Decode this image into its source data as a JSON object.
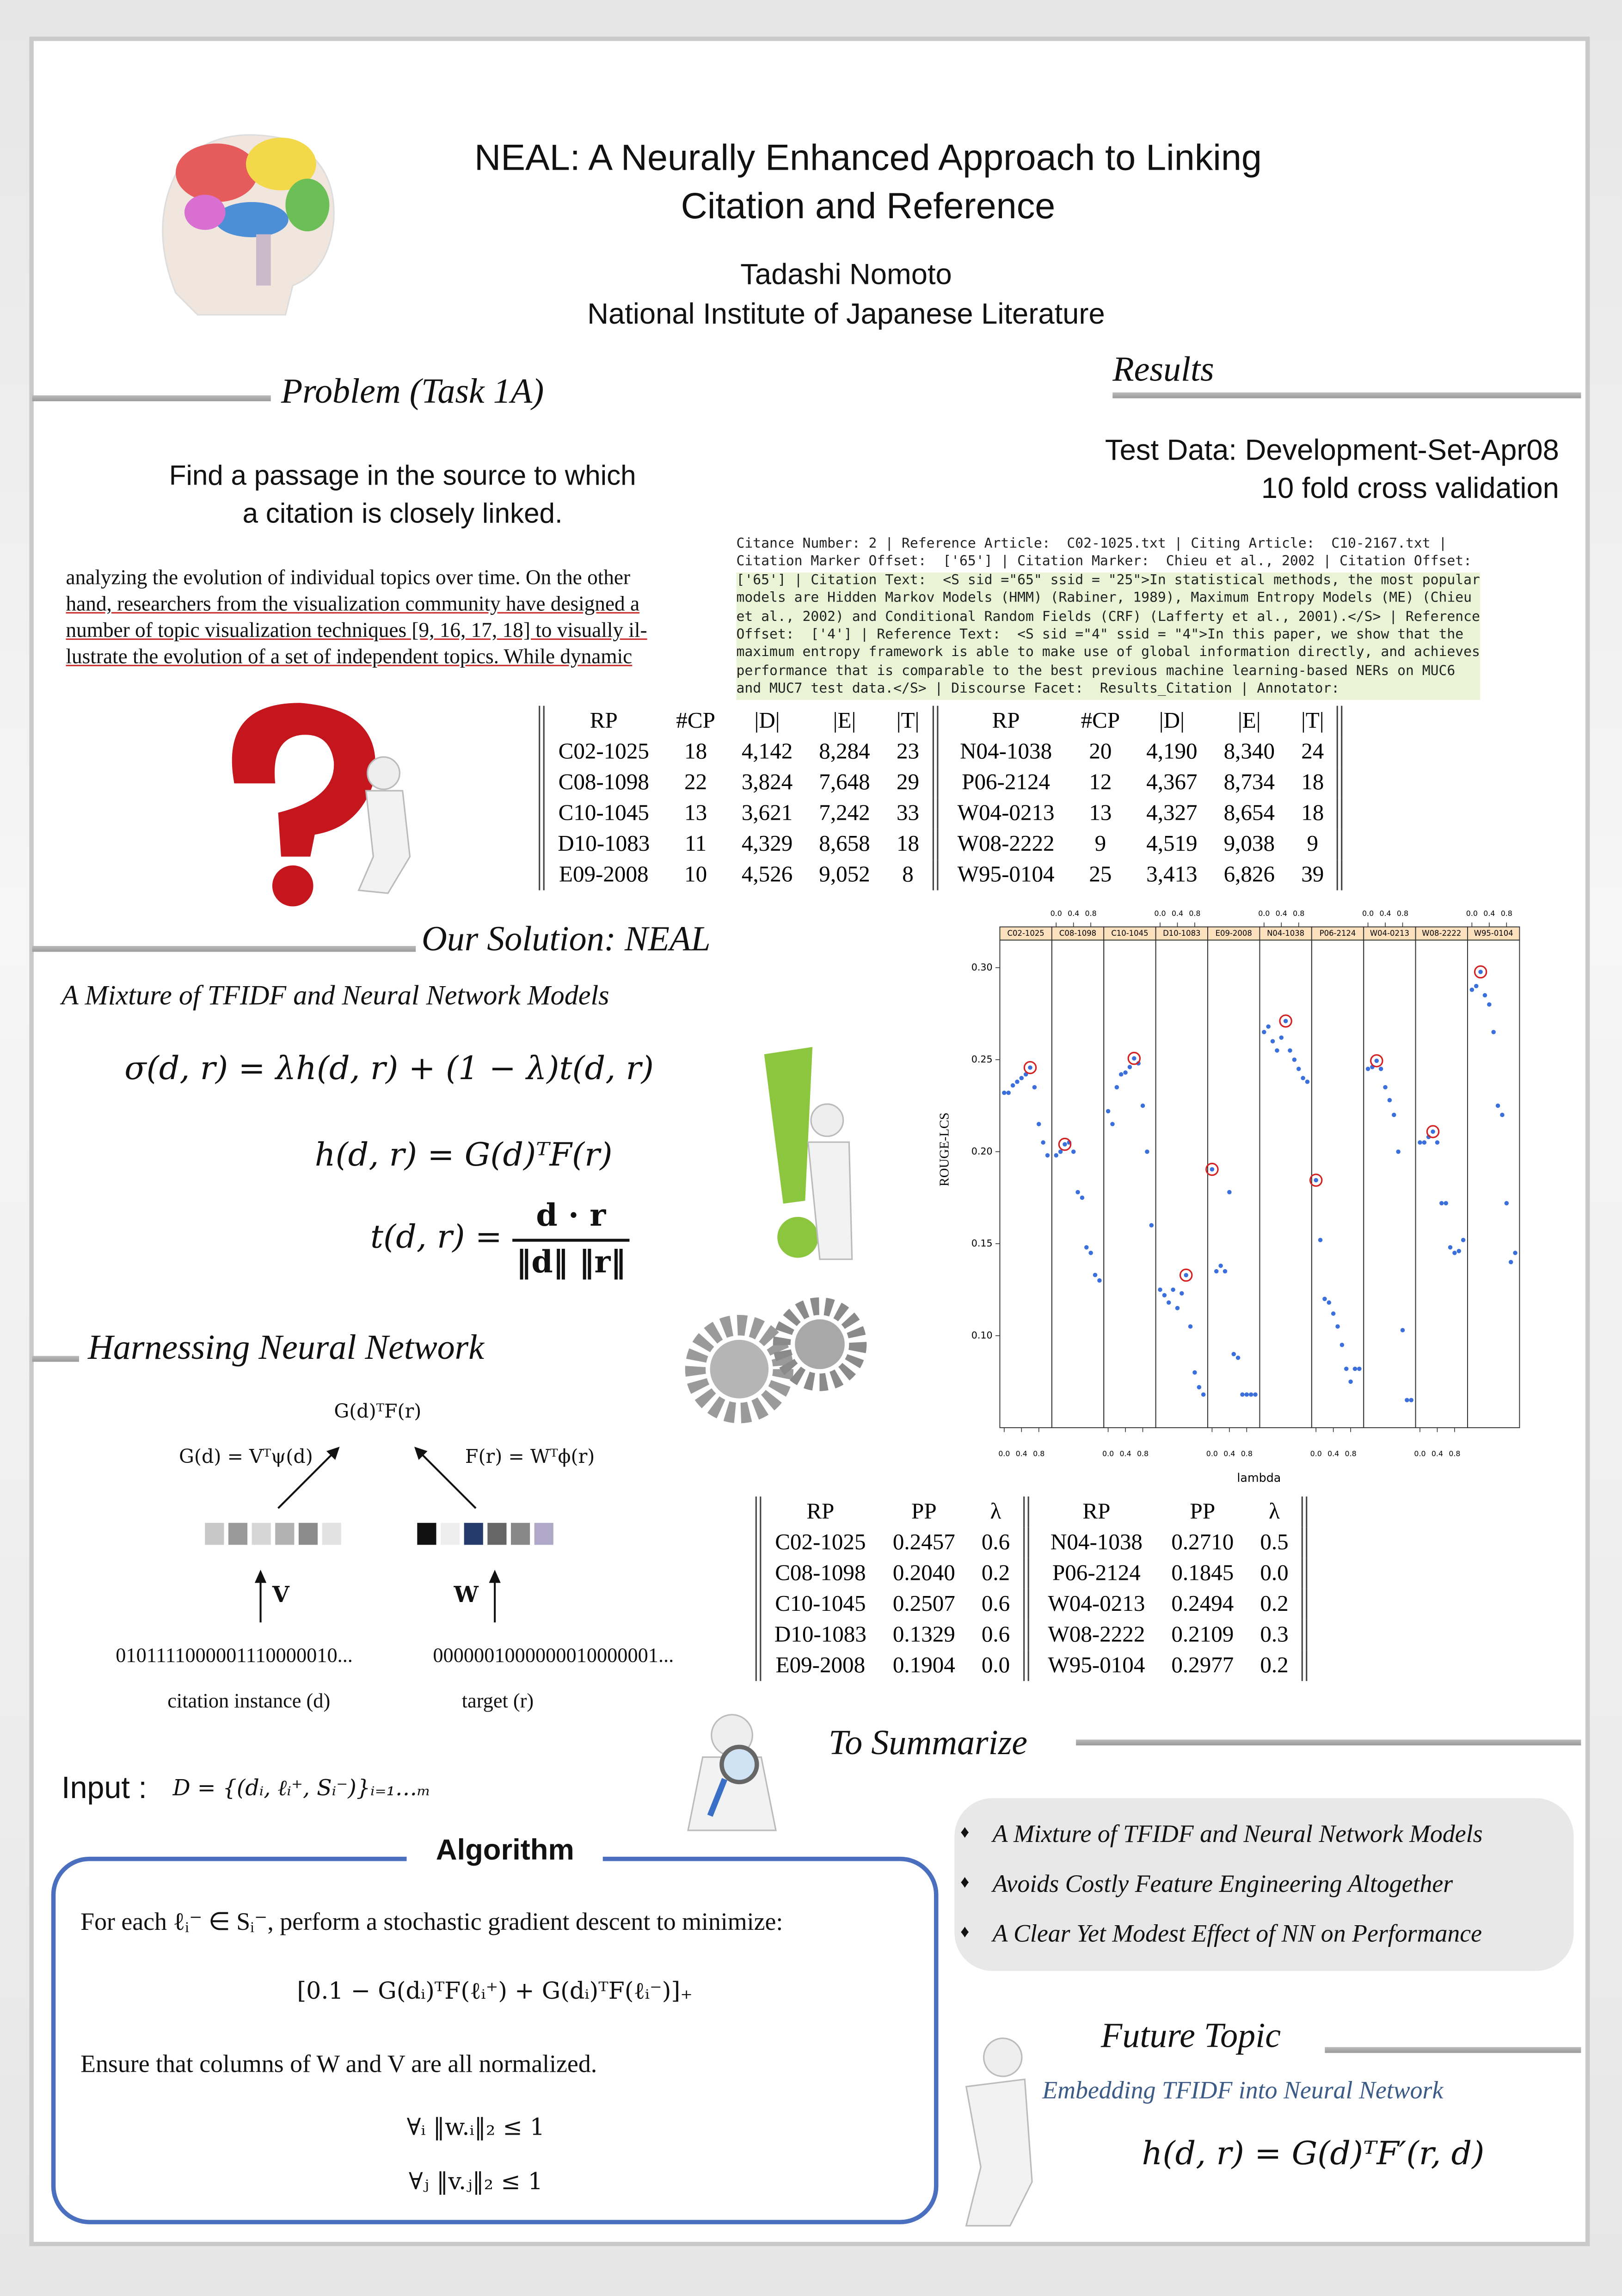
{
  "header": {
    "title": [
      "NEAL: A Neurally Enhanced Approach to Linking",
      "Citation and Reference"
    ],
    "author": "Tadashi Nomoto",
    "affiliation": "National Institute of Japanese Literature"
  },
  "problem": {
    "heading": "Problem (Task 1A)",
    "statement": [
      "Find a passage in the source to which",
      "a citation is closely linked."
    ],
    "excerpt": [
      "analyzing the evolution of individual topics over time.  On the other",
      "hand, researchers from the visualization community have designed a",
      "number of topic visualization techniques [9, 16, 17, 18] to visually il-",
      "lustrate the evolution of a set of independent topics.  While dynamic"
    ]
  },
  "results": {
    "heading": "Results",
    "test_data": [
      "Test Data: Development-Set-Apr08",
      "10 fold cross validation"
    ],
    "example": [
      "Citance Number: 2 | Reference Article:  C02-1025.txt | Citing Article:  C10-2167.txt |",
      "Citation Marker Offset:  ['65'] | Citation Marker:  Chieu et al., 2002 | Citation Offset:",
      "['65'] | Citation Text:  <S sid =\"65\" ssid = \"25\">In statistical methods, the most popular",
      "models are Hidden Markov Models (HMM) (Rabiner, 1989), Maximum Entropy Models (ME) (Chieu",
      "et al., 2002) and Conditional Random Fields (CRF) (Lafferty et al., 2001).</S> | Reference",
      "Offset:  ['4'] | Reference Text:  <S sid =\"4\" ssid = \"4\">In this paper, we show that the",
      "maximum entropy framework is able to make use of global information directly, and achieves",
      "performance that is comparable to the best previous machine learning-based NERs on MUC6",
      "and MUC7 test data.</S> | Discourse Facet:  Results_Citation | Annotator:"
    ],
    "data_table": {
      "columns": [
        "RP",
        "#CP",
        "|D|",
        "|E|",
        "|T|"
      ],
      "left": [
        [
          "C02-1025",
          "18",
          "4,142",
          "8,284",
          "23"
        ],
        [
          "C08-1098",
          "22",
          "3,824",
          "7,648",
          "29"
        ],
        [
          "C10-1045",
          "13",
          "3,621",
          "7,242",
          "33"
        ],
        [
          "D10-1083",
          "11",
          "4,329",
          "8,658",
          "18"
        ],
        [
          "E09-2008",
          "10",
          "4,526",
          "9,052",
          "8"
        ]
      ],
      "right": [
        [
          "N04-1038",
          "20",
          "4,190",
          "8,340",
          "24"
        ],
        [
          "P06-2124",
          "12",
          "4,367",
          "8,734",
          "18"
        ],
        [
          "W04-0213",
          "13",
          "4,327",
          "8,654",
          "18"
        ],
        [
          "W08-2222",
          "9",
          "4,519",
          "9,038",
          "9"
        ],
        [
          "W95-0104",
          "25",
          "3,413",
          "6,826",
          "39"
        ]
      ]
    },
    "score_table": {
      "columns": [
        "RP",
        "PP",
        "λ"
      ],
      "left": [
        [
          "C02-1025",
          "0.2457",
          "0.6"
        ],
        [
          "C08-1098",
          "0.2040",
          "0.2"
        ],
        [
          "C10-1045",
          "0.2507",
          "0.6"
        ],
        [
          "D10-1083",
          "0.1329",
          "0.6"
        ],
        [
          "E09-2008",
          "0.1904",
          "0.0"
        ]
      ],
      "right": [
        [
          "N04-1038",
          "0.2710",
          "0.5"
        ],
        [
          "P06-2124",
          "0.1845",
          "0.0"
        ],
        [
          "W04-0213",
          "0.2494",
          "0.2"
        ],
        [
          "W08-2222",
          "0.2109",
          "0.3"
        ],
        [
          "W95-0104",
          "0.2977",
          "0.2"
        ]
      ]
    }
  },
  "chart_data": {
    "type": "scatter",
    "y_label": "ROUGE-LCS",
    "x_label": "lambda",
    "ylim": [
      0.05,
      0.315
    ],
    "yticks": [
      {
        "value": 0.1,
        "label": "0.10"
      },
      0.15,
      {
        "value": 0.2,
        "label": "0.20"
      },
      0.25,
      {
        "value": 0.3,
        "label": "0.30"
      }
    ],
    "xlim": [
      -0.1,
      1.1
    ],
    "xticks": [
      {
        "value": 0,
        "label": "0.0"
      },
      0.4,
      0.8
    ],
    "color": "#3b6fdc",
    "highlight_color": "#d42020",
    "strip_color": "#fde0bd",
    "x": [
      0,
      0.1,
      0.2,
      0.3,
      0.4,
      0.5,
      0.6,
      0.7,
      0.8,
      0.9,
      1.0
    ],
    "panels": [
      {
        "name": "C02-1025",
        "circled": 6,
        "values": [
          0.232,
          0.232,
          0.236,
          0.238,
          0.24,
          0.242,
          0.2457,
          0.235,
          0.215,
          0.205,
          0.198
        ]
      },
      {
        "name": "C08-1098",
        "circled": 2,
        "values": [
          0.198,
          0.2,
          0.204,
          0.205,
          0.2,
          0.178,
          0.175,
          0.148,
          0.145,
          0.133,
          0.13
        ]
      },
      {
        "name": "C10-1045",
        "circled": 6,
        "values": [
          0.222,
          0.215,
          0.235,
          0.242,
          0.243,
          0.246,
          0.2507,
          0.248,
          0.225,
          0.2,
          0.16
        ]
      },
      {
        "name": "D10-1083",
        "circled": 6,
        "values": [
          0.125,
          0.122,
          0.118,
          0.125,
          0.115,
          0.123,
          0.1329,
          0.105,
          0.08,
          0.072,
          0.068
        ]
      },
      {
        "name": "E09-2008",
        "circled": 0,
        "values": [
          0.1904,
          0.135,
          0.138,
          0.135,
          0.178,
          0.09,
          0.088,
          0.068,
          0.068,
          0.068,
          0.068
        ]
      },
      {
        "name": "N04-1038",
        "circled": 5,
        "values": [
          0.265,
          0.268,
          0.26,
          0.255,
          0.262,
          0.271,
          0.255,
          0.25,
          0.245,
          0.24,
          0.238
        ]
      },
      {
        "name": "P06-2124",
        "circled": 0,
        "values": [
          0.1845,
          0.152,
          0.12,
          0.118,
          0.112,
          0.105,
          0.095,
          0.082,
          0.075,
          0.082,
          0.082
        ]
      },
      {
        "name": "W04-0213",
        "circled": 2,
        "values": [
          0.245,
          0.246,
          0.2494,
          0.245,
          0.235,
          0.228,
          0.22,
          0.2,
          0.103,
          0.065,
          0.065
        ]
      },
      {
        "name": "W08-2222",
        "circled": 3,
        "values": [
          0.205,
          0.205,
          0.208,
          0.2109,
          0.205,
          0.172,
          0.172,
          0.148,
          0.145,
          0.146,
          0.152
        ]
      },
      {
        "name": "W95-0104",
        "circled": 2,
        "values": [
          0.288,
          0.29,
          0.2977,
          0.285,
          0.28,
          0.265,
          0.225,
          0.22,
          0.172,
          0.14,
          0.145
        ]
      }
    ]
  },
  "solution": {
    "heading": "Our Solution: NEAL",
    "subheading": "A Mixture of TFIDF and Neural Network Models",
    "sigma": "σ(d, r) = λh(d, r) + (1 − λ)t(d, r)",
    "h": "h(d, r) = G(d)ᵀF(r)",
    "t": {
      "lhs": "t(d, r) =",
      "numerator": "d · r",
      "denominator": "‖d‖ ‖r‖"
    }
  },
  "network": {
    "heading": "Harnessing Neural Network",
    "top": "G(d)ᵀF(r)",
    "left_formula": "G(d) = Vᵀψ(d)",
    "right_formula": "F(r) = Wᵀϕ(r)",
    "left_matrix": "V",
    "right_matrix": "W",
    "left_bits": "0101111000001110000010...",
    "right_bits": "0000001000000010000001...",
    "left_caption": "citation instance (d)",
    "right_caption": "target (r)"
  },
  "input": {
    "label": "Input :",
    "formula": "D = {(dᵢ, ℓᵢ⁺, Sᵢ⁻)}ᵢ₌₁…ₘ"
  },
  "algorithm": {
    "title": "Algorithm",
    "step": "For each ℓᵢ⁻ ∈ Sᵢ⁻, perform a stochastic gradient descent to minimize:",
    "loss": "[0.1 − G(dᵢ)ᵀF(ℓᵢ⁺) + G(dᵢ)ᵀF(ℓᵢ⁻)]₊",
    "constraint": "Ensure that columns of W and V are all normalized.",
    "norms": [
      "∀ᵢ ‖w.ᵢ‖₂ ≤ 1",
      "∀ⱼ ‖v.ⱼ‖₂ ≤ 1"
    ]
  },
  "summary": {
    "heading": "To Summarize",
    "items": [
      "A Mixture of TFIDF and Neural Network Models",
      "Avoids Costly Feature Engineering Altogether",
      "A Clear Yet Modest Effect of NN on Performance"
    ]
  },
  "future": {
    "heading": "Future Topic",
    "subheading": "Embedding TFIDF into Neural Network",
    "formula": "h(d, r) = G(d)ᵀF′(r, d)"
  }
}
